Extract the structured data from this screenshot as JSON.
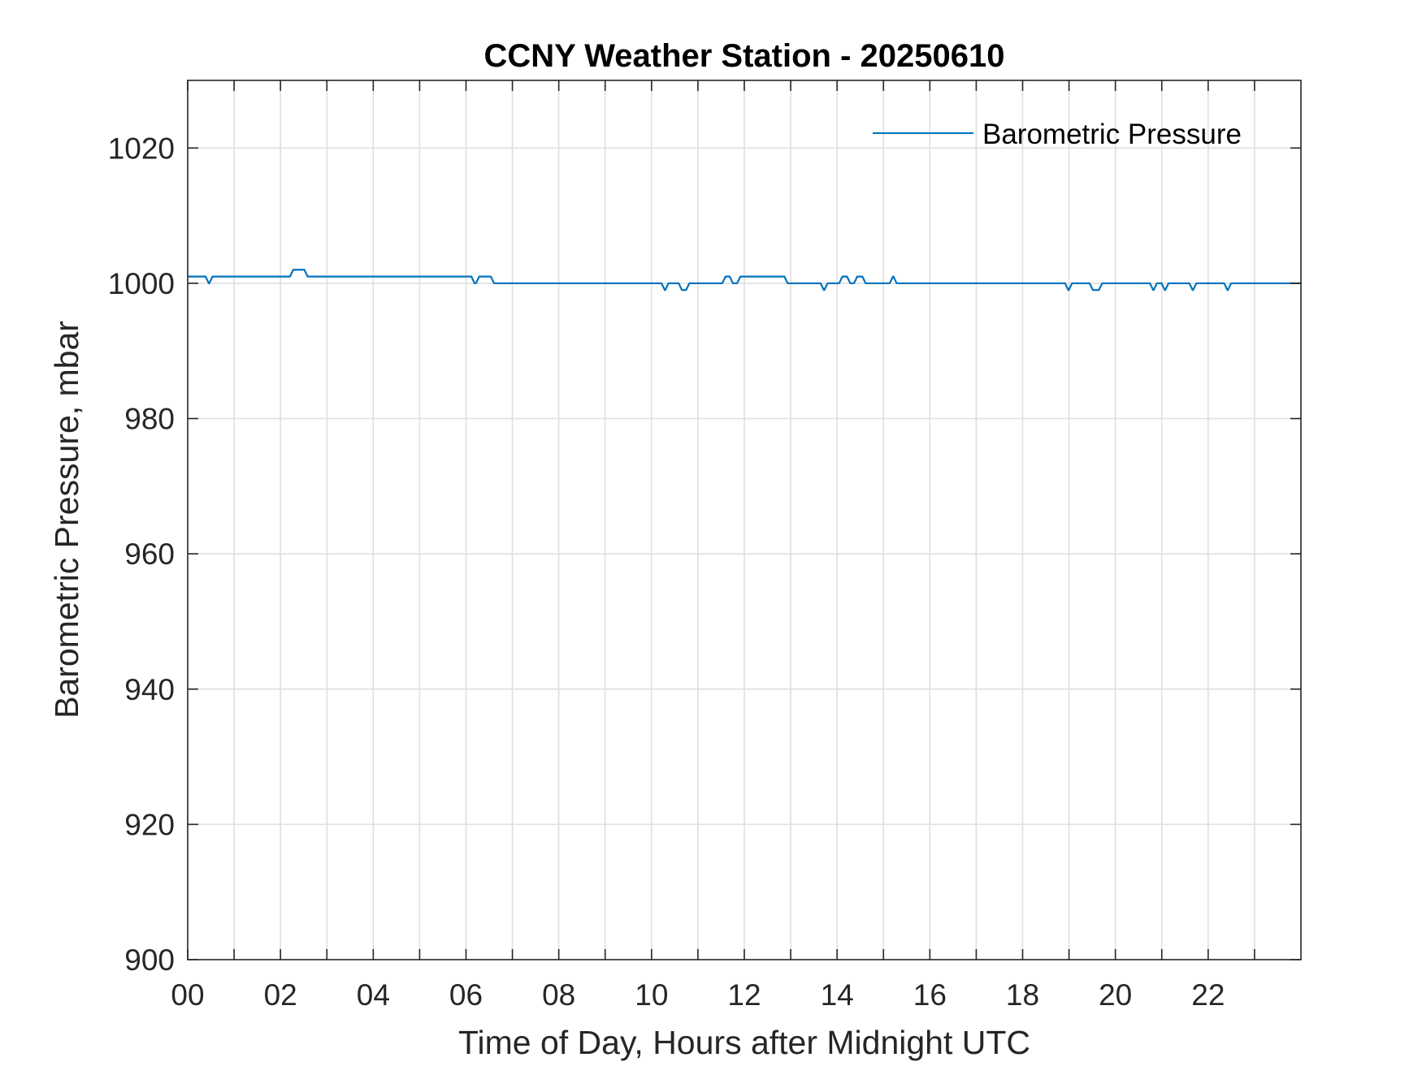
{
  "chart_data": {
    "type": "line",
    "title": "CCNY Weather Station - 20250610",
    "xlabel": "Time of Day, Hours after Midnight UTC",
    "ylabel": "Barometric Pressure, mbar",
    "xlim": [
      0,
      24
    ],
    "ylim": [
      900,
      1030
    ],
    "xticks": [
      0,
      2,
      4,
      6,
      8,
      10,
      12,
      14,
      16,
      18,
      20,
      22
    ],
    "xtick_labels": [
      "00",
      "02",
      "04",
      "06",
      "08",
      "10",
      "12",
      "14",
      "16",
      "18",
      "20",
      "22"
    ],
    "yticks": [
      900,
      920,
      940,
      960,
      980,
      1000,
      1020
    ],
    "ytick_labels": [
      "900",
      "920",
      "940",
      "960",
      "980",
      "1000",
      "1020"
    ],
    "grid": true,
    "legend": "top-right",
    "series": [
      {
        "name": "Barometric Pressure",
        "color": "#0072bd",
        "step": true,
        "x": [
          0,
          0.42,
          0.5,
          2.24,
          2.55,
          6.15,
          6.25,
          6.57,
          10.25,
          10.33,
          10.62,
          10.78,
          11.56,
          11.72,
          11.88,
          12.9,
          13.68,
          13.76,
          14.08,
          14.25,
          14.4,
          14.58,
          15.17,
          15.25,
          18.95,
          19.03,
          19.48,
          19.68,
          20.78,
          20.86,
          21.03,
          21.11,
          21.63,
          21.71,
          22.38,
          22.46,
          23.98
        ],
        "y": [
          1001,
          1000,
          1001,
          1002,
          1001,
          1000,
          1001,
          1000,
          999,
          1000,
          999,
          1000,
          1001,
          1000,
          1001,
          1000,
          999,
          1000,
          1001,
          1000,
          1001,
          1000,
          1001,
          1000,
          999,
          1000,
          999,
          1000,
          999,
          1000,
          999,
          1000,
          999,
          1000,
          999,
          1000,
          1000
        ]
      }
    ]
  }
}
